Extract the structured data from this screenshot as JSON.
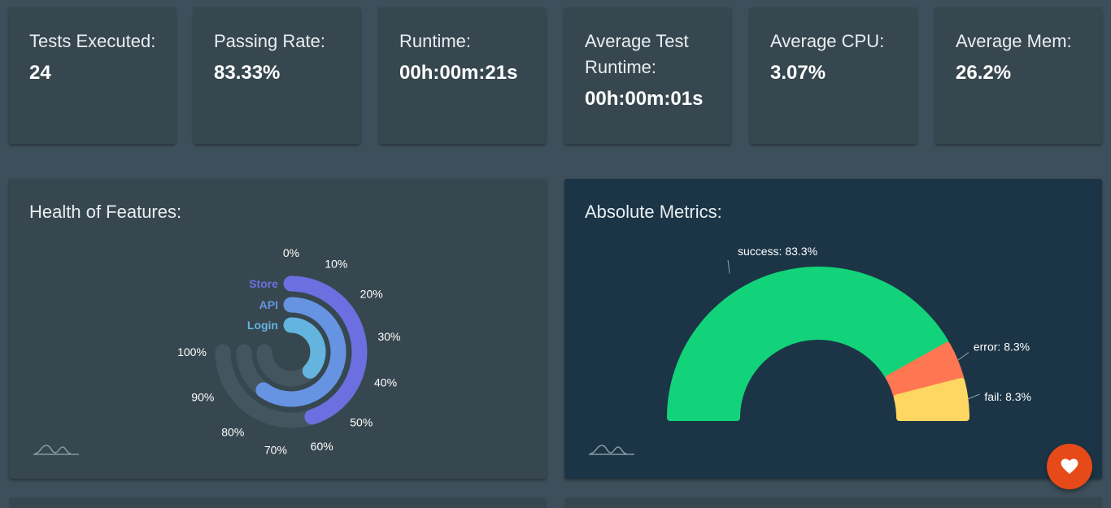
{
  "stats": [
    {
      "label": "Tests Executed:",
      "value": "24"
    },
    {
      "label": "Passing Rate:",
      "value": "83.33%"
    },
    {
      "label": "Runtime:",
      "value": "00h:00m:21s"
    },
    {
      "label": "Average Test\nRuntime:",
      "value": "00h:00m:01s"
    },
    {
      "label": "Average CPU:",
      "value": "3.07%"
    },
    {
      "label": "Average Mem:",
      "value": "26.2%"
    }
  ],
  "health_panel": {
    "title": "Health of Features:"
  },
  "metrics_panel": {
    "title": "Absolute Metrics:"
  },
  "colors": {
    "page_bg": "#3d4f5b",
    "card_bg": "#37474f",
    "metrics_bg": "#1b3546",
    "store": "#6b6fe0",
    "api": "#6694e2",
    "login": "#63b5e0",
    "track": "#455560",
    "success": "#13d37a",
    "error": "#ff7652",
    "fail": "#fdd761",
    "fab": "#e64a19"
  },
  "fab": {
    "icon": "heart-icon"
  },
  "chart_data": [
    {
      "type": "radial-bar",
      "axis_ticks": [
        "0%",
        "10%",
        "20%",
        "30%",
        "40%",
        "50%",
        "60%",
        "70%",
        "80%",
        "90%",
        "100%"
      ],
      "series": [
        {
          "name": "Store",
          "value": 60
        },
        {
          "name": "API",
          "value": 80
        },
        {
          "name": "Login",
          "value": 50
        }
      ],
      "max": 100
    },
    {
      "type": "pie",
      "slices": [
        {
          "name": "success",
          "value": 83.3,
          "label": "success: 83.3%"
        },
        {
          "name": "error",
          "value": 8.3,
          "label": "error: 8.3%"
        },
        {
          "name": "fail",
          "value": 8.3,
          "label": "fail: 8.3%"
        }
      ]
    }
  ]
}
